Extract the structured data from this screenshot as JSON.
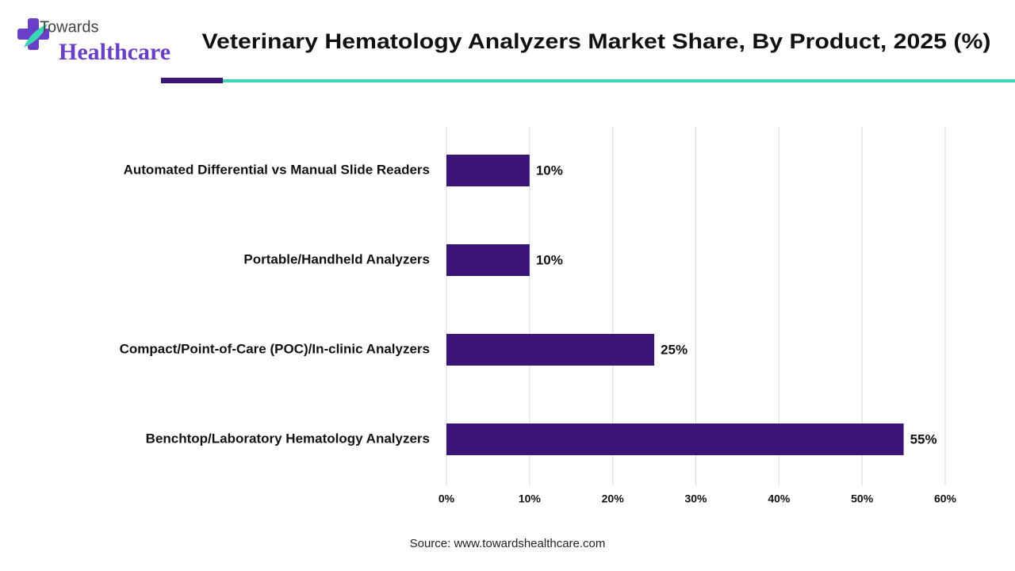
{
  "logo": {
    "line1": "Towards",
    "line2": "Healthcare"
  },
  "chart_data": {
    "type": "bar",
    "orientation": "horizontal",
    "title": "Veterinary Hematology Analyzers Market Share, By Product, 2025 (%)",
    "categories": [
      "Automated Differential vs Manual Slide Readers",
      "Portable/Handheld Analyzers",
      "Compact/Point-of-Care (POC)/In-clinic Analyzers",
      "Benchtop/Laboratory Hematology Analyzers"
    ],
    "values": [
      10,
      10,
      25,
      55
    ],
    "value_labels": [
      "10%",
      "10%",
      "25%",
      "55%"
    ],
    "color": "#3a1577",
    "xlim": [
      0,
      60
    ],
    "xticks": [
      {
        "value": 0,
        "label": "0%"
      },
      {
        "value": 10,
        "label": "10%"
      },
      {
        "value": 20,
        "label": "20%"
      },
      {
        "value": 30,
        "label": "30%"
      },
      {
        "value": 40,
        "label": "40%"
      },
      {
        "value": 50,
        "label": "50%"
      },
      {
        "value": 60,
        "label": "60%"
      }
    ],
    "grid": true,
    "source": "Source: www.towardshealthcare.com"
  }
}
